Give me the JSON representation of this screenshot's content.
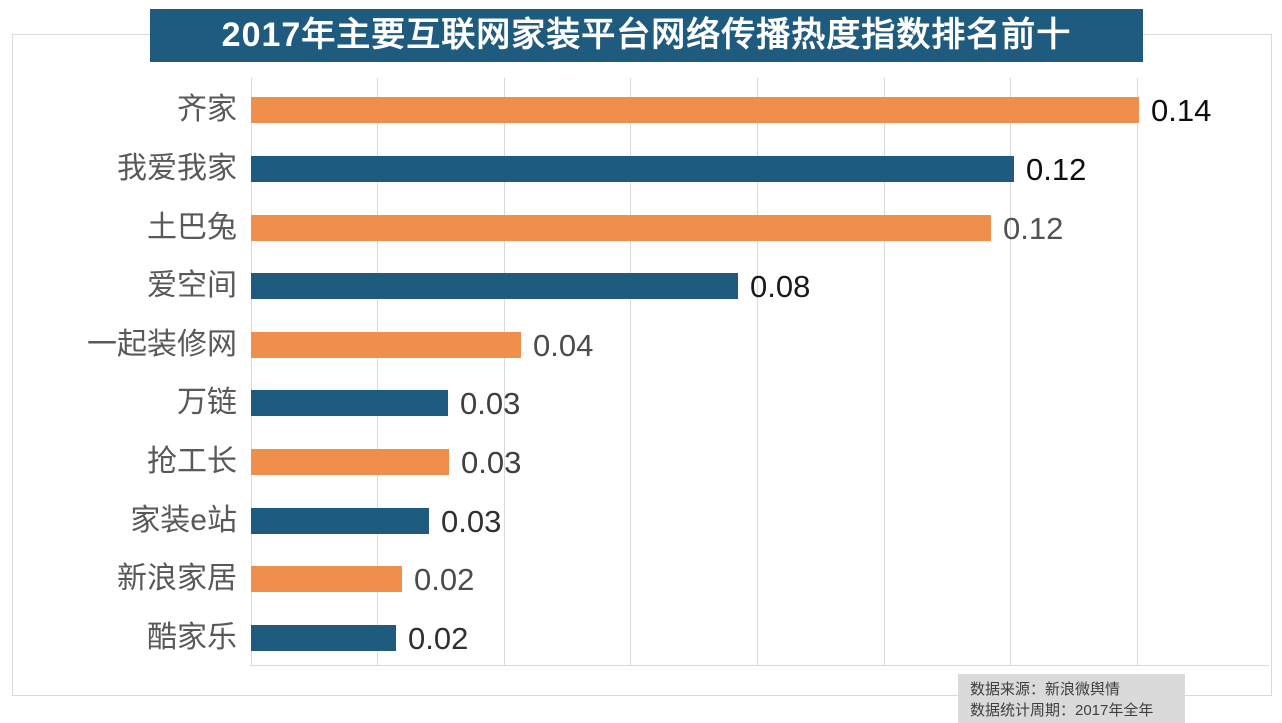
{
  "title": {
    "text": "2017年主要互联网家装平台网络传播热度指数排名前十",
    "bg_color": "#1f5b7e",
    "text_color": "#ffffff"
  },
  "source_note": {
    "line1": "数据来源：新浪微舆情",
    "line2": "数据统计周期：2017年全年"
  },
  "colors": {
    "orange_bar": "#ef8f4b",
    "blue_bar": "#1f5b7e",
    "grid": "#d9d9d9",
    "category_label": "#595959"
  },
  "chart_data": {
    "type": "bar",
    "orientation": "horizontal",
    "title": "2017年主要互联网家装平台网络传播热度指数排名前十",
    "xlabel": "",
    "ylabel": "",
    "xlim": [
      0,
      0.16
    ],
    "grid_step": 0.02,
    "grid": true,
    "legend": false,
    "categories": [
      "齐家",
      "我爱我家",
      "土巴兔",
      "爱空间",
      "一起装修网",
      "万链",
      "抢工长",
      "家装e站",
      "新浪家居",
      "酷家乐"
    ],
    "values": [
      0.14,
      0.12,
      0.12,
      0.08,
      0.04,
      0.03,
      0.03,
      0.03,
      0.02,
      0.02
    ],
    "value_labels": [
      "0.14",
      "0.12",
      "0.12",
      "0.08",
      "0.04",
      "0.03",
      "0.03",
      "0.03",
      "0.02",
      "0.02"
    ],
    "values_precise_est": [
      0.1403,
      0.1205,
      0.1169,
      0.0769,
      0.0427,
      0.0311,
      0.0313,
      0.0281,
      0.0239,
      0.0229
    ],
    "bar_colors": [
      "#ef8f4b",
      "#1f5b7e",
      "#ef8f4b",
      "#1f5b7e",
      "#ef8f4b",
      "#1f5b7e",
      "#ef8f4b",
      "#1f5b7e",
      "#ef8f4b",
      "#1f5b7e"
    ],
    "value_label_colors": [
      "#0e0e0e",
      "#0e0e0e",
      "#525252",
      "#1a1a1a",
      "#4c4c4c",
      "#3f3f3f",
      "#3f3f3f",
      "#303030",
      "#4c4c4c",
      "#303030"
    ]
  },
  "layout_hints": {
    "note": "gridlines every 0.02 from 0 to 0.14; value labels to the right of bar ends"
  }
}
